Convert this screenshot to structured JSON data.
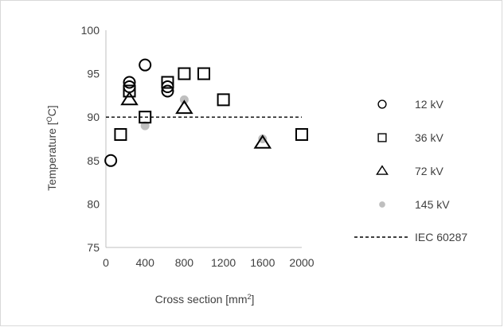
{
  "chart_data": {
    "type": "scatter",
    "title": "",
    "xlabel": "Cross section [mm",
    "xlabel_sup": "2",
    "xlabel_end": "]",
    "ylabel": "Temperature [",
    "ylabel_sup": "O",
    "ylabel_end": "C]",
    "xlim": [
      0,
      2000
    ],
    "ylim": [
      75,
      100
    ],
    "xticks": [
      "0",
      "200",
      "400",
      "600",
      "800",
      "1000",
      "1200",
      "1400",
      "1600",
      "1800",
      "2000"
    ],
    "yticks": [
      "75",
      "80",
      "85",
      "90",
      "95",
      "100"
    ],
    "grid": false,
    "legend_position": "right",
    "series": [
      {
        "name": "12 kV",
        "marker": "circle",
        "color": "#000000",
        "x": [
          50,
          240,
          240,
          400,
          630,
          630
        ],
        "y": [
          85,
          94,
          93.5,
          96,
          93,
          93.5
        ]
      },
      {
        "name": "36 kV",
        "marker": "square",
        "color": "#000000",
        "x": [
          150,
          240,
          400,
          630,
          800,
          1000,
          1200,
          2000
        ],
        "y": [
          88,
          93,
          90,
          94,
          95,
          95,
          92,
          88
        ]
      },
      {
        "name": "72 kV",
        "marker": "triangle",
        "color": "#000000",
        "x": [
          240,
          800,
          1600
        ],
        "y": [
          92,
          91,
          87
        ]
      },
      {
        "name": "145 kV",
        "marker": "dot",
        "color": "#bfbfbf",
        "x": [
          400,
          800,
          1600
        ],
        "y": [
          89,
          92,
          87.5
        ]
      }
    ],
    "reference_lines": [
      {
        "name": "IEC 60287",
        "style": "dashed",
        "color": "#000000",
        "y": 90
      }
    ]
  }
}
